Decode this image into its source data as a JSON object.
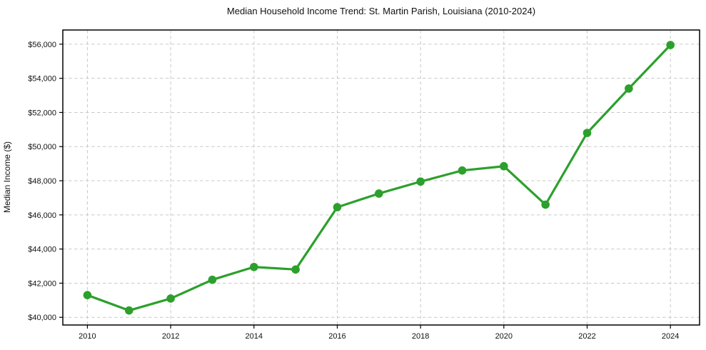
{
  "figure": {
    "title": "Median Household Income Trend: St. Martin Parish, Louisiana (2010-2024)"
  },
  "chart_data": {
    "type": "line",
    "title": "Median Household Income Trend: St. Martin Parish, Louisiana (2010-2024)",
    "xlabel": "",
    "ylabel": "Median Income ($)",
    "x": [
      2010,
      2011,
      2012,
      2013,
      2014,
      2015,
      2016,
      2017,
      2018,
      2019,
      2020,
      2021,
      2022,
      2023,
      2024
    ],
    "values": [
      41300,
      40400,
      41100,
      42200,
      42950,
      42800,
      46450,
      47250,
      47950,
      48600,
      48850,
      46600,
      50800,
      53400,
      55950
    ],
    "xlim": [
      2009.41,
      2024.7
    ],
    "ylim": [
      39550,
      56830
    ],
    "xticks": [
      2010,
      2012,
      2014,
      2016,
      2018,
      2020,
      2022,
      2024
    ],
    "xtick_labels": [
      "2010",
      "2012",
      "2014",
      "2016",
      "2018",
      "2020",
      "2022",
      "2024"
    ],
    "yticks": [
      40000,
      42000,
      44000,
      46000,
      48000,
      50000,
      52000,
      54000,
      56000
    ],
    "ytick_labels": [
      "$40,000",
      "$42,000",
      "$44,000",
      "$46,000",
      "$48,000",
      "$50,000",
      "$52,000",
      "$54,000",
      "$56,000"
    ],
    "grid": true,
    "grid_style": "dashed",
    "legend": "none",
    "line_color": "#2ca02c",
    "marker": "circle",
    "marker_color": "#2ca02c",
    "grid_color": "#c9c9c9",
    "axis_color": "#000000",
    "text_color": "#111111",
    "background": "#ffffff"
  }
}
